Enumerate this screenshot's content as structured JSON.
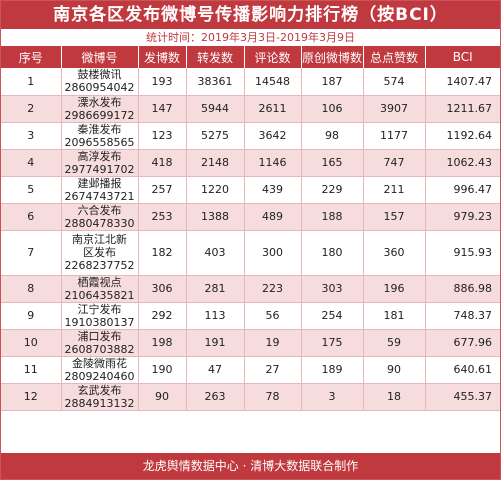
{
  "title": "南京各区发布微博号传播影响力排行榜（按BCI）",
  "subtitle": "统计时间：2019年3月3日-2019年3月9日",
  "headers": [
    "序号",
    "微博号",
    "发博数",
    "转发数",
    "评论数",
    "原创微博数",
    "总点赞数",
    "BCI"
  ],
  "rows": [
    {
      "rank": "1",
      "name": "鼓楼微讯",
      "id": "2860954042",
      "posts": "193",
      "reposts": "38361",
      "comments": "14548",
      "original": "187",
      "likes": "574",
      "bci": "1407.47"
    },
    {
      "rank": "2",
      "name": "溧水发布",
      "id": "2986699172",
      "posts": "147",
      "reposts": "5944",
      "comments": "2611",
      "original": "106",
      "likes": "3907",
      "bci": "1211.67"
    },
    {
      "rank": "3",
      "name": "秦淮发布",
      "id": "2096558565",
      "posts": "123",
      "reposts": "5275",
      "comments": "3642",
      "original": "98",
      "likes": "1177",
      "bci": "1192.64"
    },
    {
      "rank": "4",
      "name": "高淳发布",
      "id": "2977491702",
      "posts": "418",
      "reposts": "2148",
      "comments": "1146",
      "original": "165",
      "likes": "747",
      "bci": "1062.43"
    },
    {
      "rank": "5",
      "name": "建邺播报",
      "id": "2674743721",
      "posts": "257",
      "reposts": "1220",
      "comments": "439",
      "original": "229",
      "likes": "211",
      "bci": "996.47"
    },
    {
      "rank": "6",
      "name": "六合发布",
      "id": "2880478330",
      "posts": "253",
      "reposts": "1388",
      "comments": "489",
      "original": "188",
      "likes": "157",
      "bci": "979.23"
    },
    {
      "rank": "7",
      "name": "南京江北新区发布",
      "id": "2268237752",
      "posts": "182",
      "reposts": "403",
      "comments": "300",
      "original": "180",
      "likes": "360",
      "bci": "915.93"
    },
    {
      "rank": "8",
      "name": "栖霞视点",
      "id": "2106435821",
      "posts": "306",
      "reposts": "281",
      "comments": "223",
      "original": "303",
      "likes": "196",
      "bci": "886.98"
    },
    {
      "rank": "9",
      "name": "江宁发布",
      "id": "1910380137",
      "posts": "292",
      "reposts": "113",
      "comments": "56",
      "original": "254",
      "likes": "181",
      "bci": "748.37"
    },
    {
      "rank": "10",
      "name": "浦口发布",
      "id": "2608703882",
      "posts": "198",
      "reposts": "191",
      "comments": "19",
      "original": "175",
      "likes": "59",
      "bci": "677.96"
    },
    {
      "rank": "11",
      "name": "金陵微雨花",
      "id": "2809240460",
      "posts": "190",
      "reposts": "47",
      "comments": "27",
      "original": "189",
      "likes": "90",
      "bci": "640.61"
    },
    {
      "rank": "12",
      "name": "玄武发布",
      "id": "2884913132",
      "posts": "90",
      "reposts": "263",
      "comments": "78",
      "original": "3",
      "likes": "18",
      "bci": "455.37"
    }
  ],
  "footer": "龙虎舆情数据中心 · 清博大数据联合制作"
}
